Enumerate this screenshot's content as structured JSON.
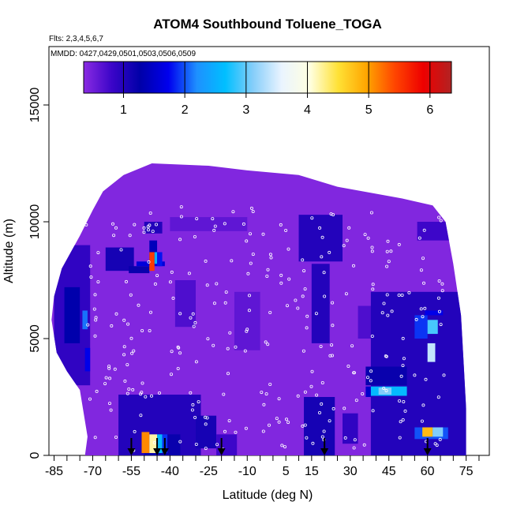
{
  "chart_data": {
    "type": "heatmap",
    "title": "ATOM4 Southbound Toluene_TOGA",
    "subtitle": "Flts: 2,3,4,5,6,7",
    "annotation": "MMDD: 0427,0429,0501,0503,0506,0509",
    "xlabel": "Latitude (deg N)",
    "ylabel": "Altitude (m)",
    "xlim": [
      -87,
      84
    ],
    "ylim": [
      0,
      17500
    ],
    "x_ticks": [
      -85,
      -70,
      -55,
      -40,
      -25,
      -10,
      5,
      15,
      30,
      45,
      60,
      75
    ],
    "x_tick_labels": [
      "-85",
      "-70",
      "-55",
      "-40",
      "-25",
      "-10",
      "5",
      "15",
      "30",
      "45",
      "60",
      "75"
    ],
    "x_minor_ticks": [
      -80,
      -75,
      -65,
      -60,
      -50,
      -45,
      -35,
      -30,
      -20,
      -15,
      -5,
      0,
      10,
      20,
      25,
      35,
      40,
      50,
      55,
      65,
      70,
      80
    ],
    "y_ticks": [
      0,
      5000,
      10000,
      15000
    ],
    "y_tick_labels": [
      "0",
      "5000",
      "10000",
      "15000"
    ],
    "colorbar": {
      "min": 0.35,
      "max": 6.35,
      "ticks": [
        1,
        2,
        3,
        4,
        5,
        6
      ],
      "tick_labels": [
        "1",
        "2",
        "3",
        "4",
        "5",
        "6"
      ],
      "palette": [
        "#8a2be2",
        "#3b05c8",
        "#0000a8",
        "#0000ee",
        "#1e90ff",
        "#00bfff",
        "#87cefa",
        "#eaf4ff",
        "#ffffe0",
        "#ffe135",
        "#ffa500",
        "#ff4500",
        "#ee0000",
        "#b22222"
      ]
    },
    "background_value": 0.4,
    "footprint": [
      [
        -73,
        0
      ],
      [
        -72,
        800
      ],
      [
        -75,
        2800
      ],
      [
        -80,
        3600
      ],
      [
        -84,
        4400
      ],
      [
        -86,
        5800
      ],
      [
        -85,
        6800
      ],
      [
        -82,
        8000
      ],
      [
        -75,
        9400
      ],
      [
        -70,
        10500
      ],
      [
        -66,
        11300
      ],
      [
        -58,
        12000
      ],
      [
        -47,
        12500
      ],
      [
        -25,
        12400
      ],
      [
        -10,
        12200
      ],
      [
        10,
        12000
      ],
      [
        25,
        11500
      ],
      [
        50,
        11000
      ],
      [
        62,
        10700
      ],
      [
        67,
        10000
      ],
      [
        70,
        8200
      ],
      [
        73,
        6000
      ],
      [
        74,
        4000
      ],
      [
        75,
        2000
      ],
      [
        75,
        0
      ]
    ],
    "cells": [
      {
        "lat": [
          -85,
          -71
        ],
        "alt": [
          3000,
          9000
        ],
        "value": 0.9
      },
      {
        "lat": [
          -81,
          -75
        ],
        "alt": [
          4800,
          7200
        ],
        "value": 1.3
      },
      {
        "lat": [
          -74,
          -72
        ],
        "alt": [
          5400,
          6200
        ],
        "value": 2.1
      },
      {
        "lat": [
          -73,
          -71
        ],
        "alt": [
          3600,
          4600
        ],
        "value": 1.7
      },
      {
        "lat": [
          -65,
          -54
        ],
        "alt": [
          7900,
          8900
        ],
        "value": 1.1
      },
      {
        "lat": [
          -56,
          -48
        ],
        "alt": [
          7800,
          8100
        ],
        "value": 1.2
      },
      {
        "lat": [
          -53,
          -42
        ],
        "alt": [
          8100,
          8300
        ],
        "value": 1.6
      },
      {
        "lat": [
          -50,
          -43
        ],
        "alt": [
          9500,
          10000
        ],
        "value": 1.0
      },
      {
        "lat": [
          -48,
          -45
        ],
        "alt": [
          8300,
          9200
        ],
        "value": 1.4
      },
      {
        "lat": [
          -48,
          -46
        ],
        "alt": [
          7900,
          8700
        ],
        "value": 5.5
      },
      {
        "lat": [
          -46,
          -45
        ],
        "alt": [
          8200,
          8700
        ],
        "value": 2.5
      },
      {
        "lat": [
          -45,
          -43
        ],
        "alt": [
          8100,
          8700
        ],
        "value": 1.8
      },
      {
        "lat": [
          -60,
          -28
        ],
        "alt": [
          0,
          2600
        ],
        "value": 1.0
      },
      {
        "lat": [
          -50,
          -36
        ],
        "alt": [
          0,
          900
        ],
        "value": 1.2
      },
      {
        "lat": [
          -51,
          -48
        ],
        "alt": [
          100,
          1000
        ],
        "value": 5.1
      },
      {
        "lat": [
          -48,
          -45
        ],
        "alt": [
          100,
          900
        ],
        "value": 4.2
      },
      {
        "lat": [
          -45,
          -43
        ],
        "alt": [
          100,
          900
        ],
        "value": 2.6
      },
      {
        "lat": [
          -43,
          -41
        ],
        "alt": [
          100,
          900
        ],
        "value": 1.9
      },
      {
        "lat": [
          -30,
          -22
        ],
        "alt": [
          300,
          1700
        ],
        "value": 1.1
      },
      {
        "lat": [
          -22,
          -14
        ],
        "alt": [
          0,
          900
        ],
        "value": 0.8
      },
      {
        "lat": [
          -38,
          -30
        ],
        "alt": [
          5500,
          7500
        ],
        "value": 0.7
      },
      {
        "lat": [
          -15,
          -5
        ],
        "alt": [
          4500,
          7000
        ],
        "value": 0.6
      },
      {
        "lat": [
          -40,
          -10
        ],
        "alt": [
          9600,
          10200
        ],
        "value": 0.6
      },
      {
        "lat": [
          10,
          27
        ],
        "alt": [
          8300,
          10300
        ],
        "value": 1.0
      },
      {
        "lat": [
          15,
          22
        ],
        "alt": [
          4800,
          8200
        ],
        "value": 1.0
      },
      {
        "lat": [
          12,
          24
        ],
        "alt": [
          0,
          2500
        ],
        "value": 1.1
      },
      {
        "lat": [
          27,
          33
        ],
        "alt": [
          500,
          1800
        ],
        "value": 0.9
      },
      {
        "lat": [
          33,
          40
        ],
        "alt": [
          5000,
          6400
        ],
        "value": 0.7
      },
      {
        "lat": [
          38,
          75
        ],
        "alt": [
          0,
          7000
        ],
        "value": 1.0
      },
      {
        "lat": [
          36,
          52
        ],
        "alt": [
          3000,
          3800
        ],
        "value": 1.2
      },
      {
        "lat": [
          36,
          38
        ],
        "alt": [
          2500,
          2950
        ],
        "value": 1.5
      },
      {
        "lat": [
          38,
          52
        ],
        "alt": [
          2550,
          2950
        ],
        "value": 2.6
      },
      {
        "lat": [
          41,
          46
        ],
        "alt": [
          2600,
          2900
        ],
        "value": 3.1
      },
      {
        "lat": [
          55,
          60
        ],
        "alt": [
          5000,
          6000
        ],
        "value": 1.9
      },
      {
        "lat": [
          60,
          64
        ],
        "alt": [
          5200,
          5800
        ],
        "value": 2.9
      },
      {
        "lat": [
          60,
          63
        ],
        "alt": [
          4000,
          4800
        ],
        "value": 3.4
      },
      {
        "lat": [
          59,
          66
        ],
        "alt": [
          6000,
          6200
        ],
        "value": 1.7
      },
      {
        "lat": [
          55,
          68
        ],
        "alt": [
          700,
          1200
        ],
        "value": 2.0
      },
      {
        "lat": [
          58,
          62
        ],
        "alt": [
          800,
          1200
        ],
        "value": 4.8
      },
      {
        "lat": [
          62,
          66
        ],
        "alt": [
          800,
          1200
        ],
        "value": 3.1
      },
      {
        "lat": [
          56,
          70
        ],
        "alt": [
          9200,
          10000
        ],
        "value": 0.8
      }
    ],
    "markers": [
      {
        "lat": -55,
        "alt": 0
      },
      {
        "lat": -45,
        "alt": 0
      },
      {
        "lat": -42,
        "alt": 0
      },
      {
        "lat": -20,
        "alt": 0
      },
      {
        "lat": 20,
        "alt": 0
      },
      {
        "lat": 60,
        "alt": 0
      }
    ]
  }
}
